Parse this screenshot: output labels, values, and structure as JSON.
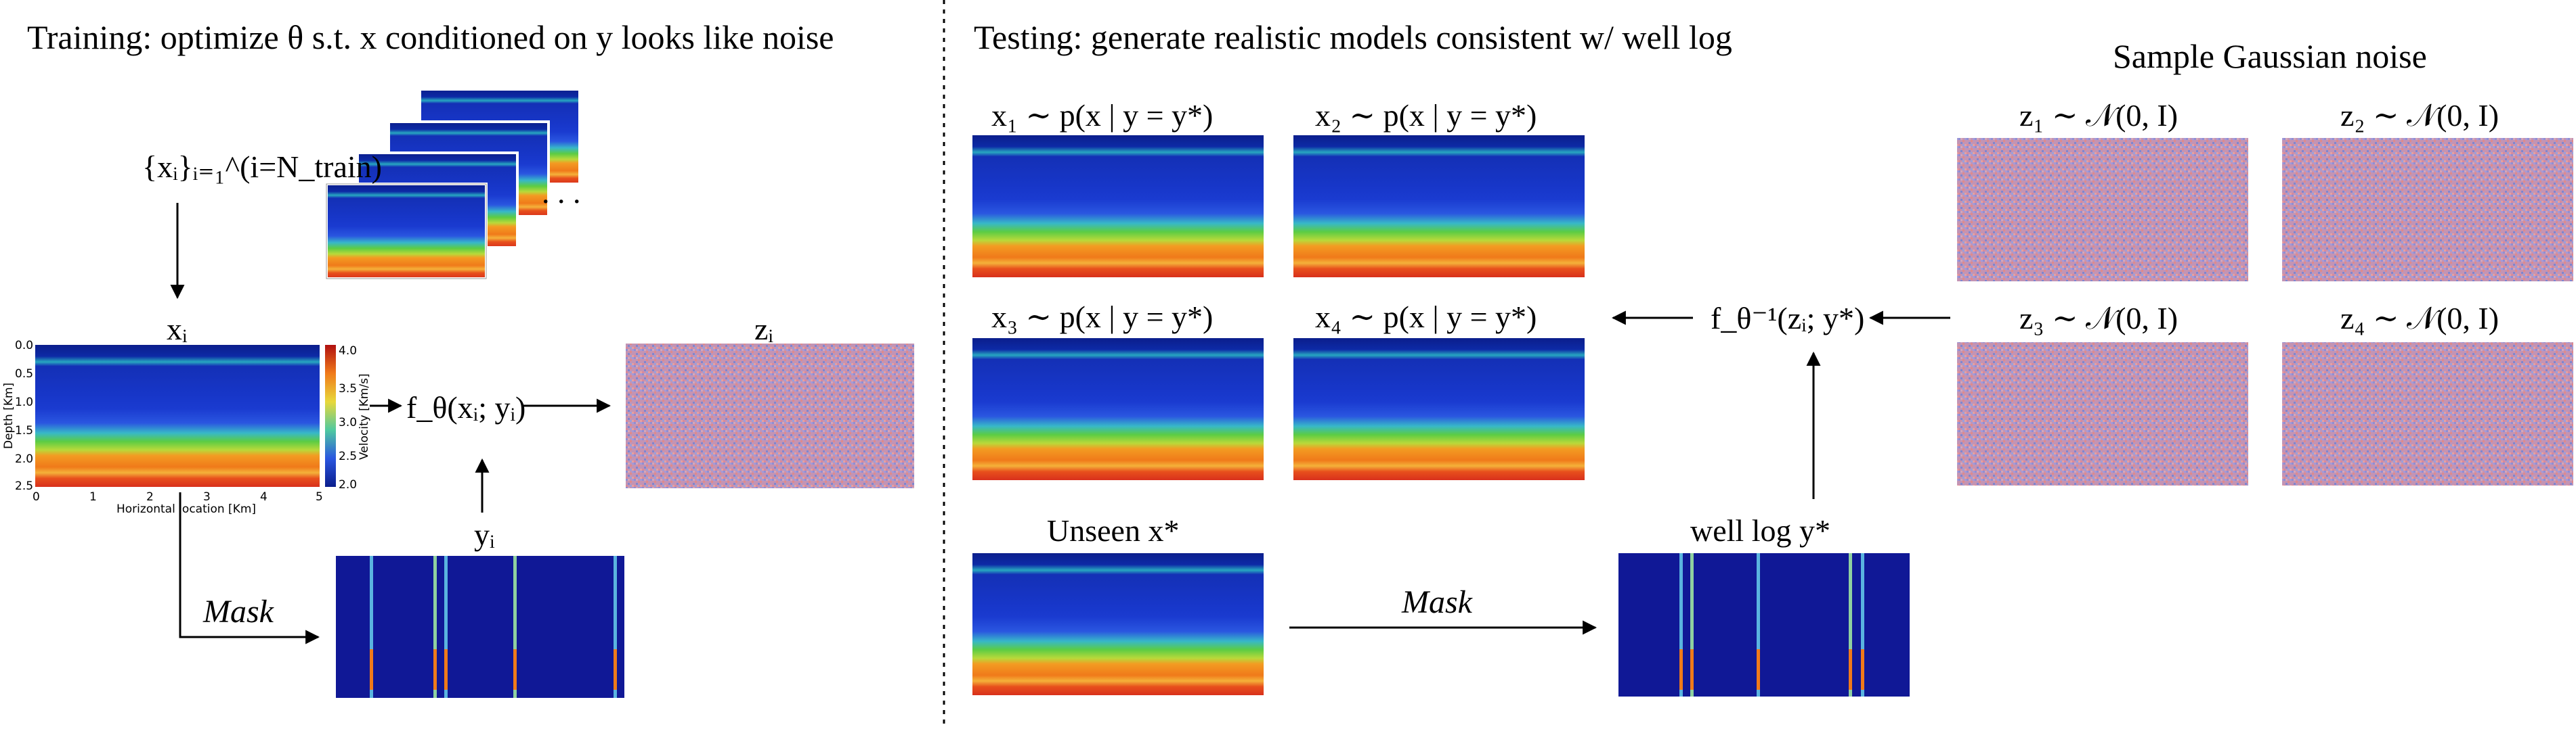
{
  "titles": {
    "training": "Training: optimize θ s.t. x conditioned on y looks like noise",
    "testing": "Testing: generate realistic models consistent w/ well log",
    "sample_noise": "Sample Gaussian noise"
  },
  "labels": {
    "dataset": "{xᵢ}ᵢ₌₁^(i=N_train)",
    "xi": "xᵢ",
    "zi": "zᵢ",
    "yi": "yᵢ",
    "forward": "f_θ(xᵢ; yᵢ)",
    "inverse": "f_θ⁻¹(zᵢ; y*)",
    "mask": "Mask",
    "unseen": "Unseen x*",
    "well_log": "well log y*",
    "x1": "x₁ ∼ p(x | y = y*)",
    "x2": "x₂ ∼ p(x | y = y*)",
    "x3": "x₃ ∼ p(x | y = y*)",
    "x4": "x₄ ∼ p(x | y = y*)",
    "z1": "z₁ ∼ 𝒩(0, I)",
    "z2": "z₂ ∼ 𝒩(0, I)",
    "z3": "z₃ ∼ 𝒩(0, I)",
    "z4": "z₄ ∼ 𝒩(0, I)"
  },
  "velocity_plot": {
    "xlabel": "Horizontal location [Km]",
    "ylabel": "Depth [Km]",
    "colorbar_label": "Velocity [Km/s]",
    "x_ticks": [
      "0",
      "1",
      "2",
      "3",
      "4",
      "5"
    ],
    "y_ticks": [
      "0.0",
      "0.5",
      "1.0",
      "1.5",
      "2.0",
      "2.5"
    ],
    "colorbar_ticks": [
      "4.0",
      "3.5",
      "3.0",
      "2.5",
      "2.0"
    ]
  },
  "colors": {
    "deep_blue": "#0a1f8f",
    "blue": "#1c3fd0",
    "green": "#4fc24a",
    "orange": "#f28a1c",
    "red": "#d8301c",
    "noise_pink": "#c98aa6",
    "noise_blue": "#8f8fd4"
  }
}
